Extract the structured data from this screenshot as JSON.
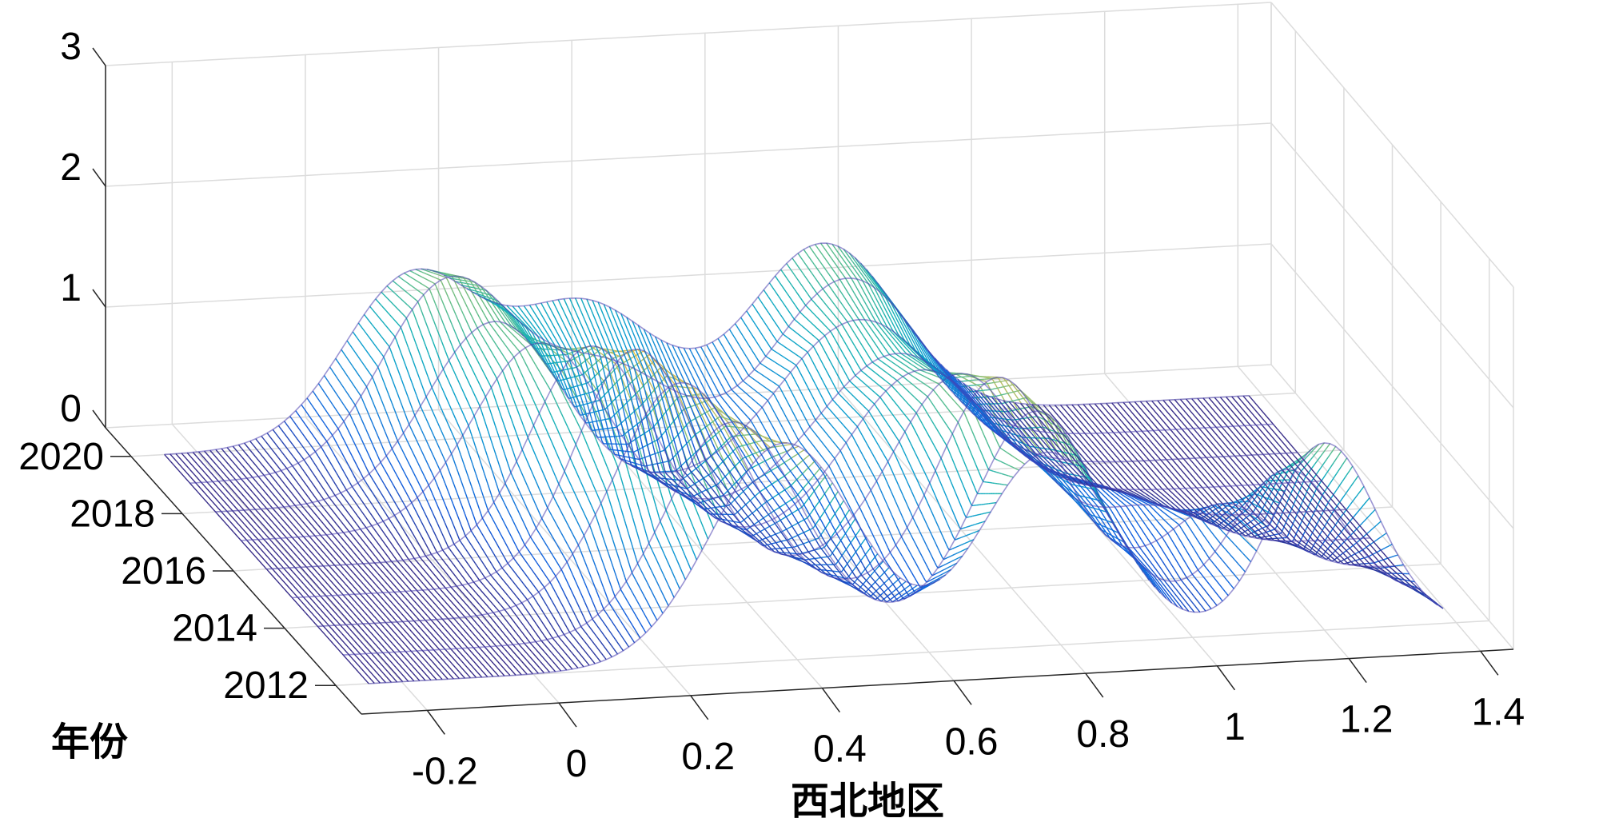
{
  "chart_data": {
    "type": "surface",
    "render_style": "waterfall-mesh",
    "colormap": "parula",
    "title": "",
    "xlabel": "西北地区",
    "ylabel": "年份",
    "zlabel": "",
    "xlim": [
      -0.3,
      1.45
    ],
    "ylim": [
      2011,
      2021
    ],
    "zlim": [
      0,
      3
    ],
    "x_ticks": [
      "-0.2",
      "0",
      "0.2",
      "0.4",
      "0.6",
      "0.8",
      "1",
      "1.2",
      "1.4"
    ],
    "y_ticks": [
      "2012",
      "2014",
      "2016",
      "2018",
      "2020"
    ],
    "z_ticks": [
      "0",
      "1",
      "2",
      "3"
    ],
    "grid": true,
    "years": [
      2012,
      2013,
      2014,
      2015,
      2016,
      2017,
      2018,
      2019,
      2020
    ],
    "density_components": [
      {
        "year": 2012,
        "peaks": [
          {
            "x": 0.38,
            "h": 1.8,
            "w": 0.11
          },
          {
            "x": 0.78,
            "h": 1.6,
            "w": 0.1
          },
          {
            "x": 1.2,
            "h": 1.55,
            "w": 0.08
          }
        ]
      },
      {
        "year": 2013,
        "peaks": [
          {
            "x": 0.34,
            "h": 1.75,
            "w": 0.1
          },
          {
            "x": 0.8,
            "h": 1.7,
            "w": 0.09
          },
          {
            "x": 1.18,
            "h": 1.1,
            "w": 0.08
          }
        ]
      },
      {
        "year": 2014,
        "peaks": [
          {
            "x": 0.3,
            "h": 1.85,
            "w": 0.1
          },
          {
            "x": 0.78,
            "h": 1.75,
            "w": 0.09
          },
          {
            "x": 1.12,
            "h": 0.6,
            "w": 0.08
          }
        ]
      },
      {
        "year": 2015,
        "peaks": [
          {
            "x": 0.27,
            "h": 1.9,
            "w": 0.09
          },
          {
            "x": 0.76,
            "h": 1.55,
            "w": 0.1
          },
          {
            "x": 1.05,
            "h": 0.35,
            "w": 0.08
          }
        ]
      },
      {
        "year": 2016,
        "peaks": [
          {
            "x": 0.24,
            "h": 1.7,
            "w": 0.09
          },
          {
            "x": 0.74,
            "h": 1.35,
            "w": 0.11
          },
          {
            "x": 1.0,
            "h": 0.25,
            "w": 0.08
          }
        ]
      },
      {
        "year": 2017,
        "peaks": [
          {
            "x": 0.2,
            "h": 1.5,
            "w": 0.1
          },
          {
            "x": 0.74,
            "h": 1.25,
            "w": 0.12
          }
        ]
      },
      {
        "year": 2018,
        "peaks": [
          {
            "x": 0.17,
            "h": 1.45,
            "w": 0.1
          },
          {
            "x": 0.72,
            "h": 1.3,
            "w": 0.12
          }
        ]
      },
      {
        "year": 2019,
        "peaks": [
          {
            "x": 0.14,
            "h": 1.55,
            "w": 0.1
          },
          {
            "x": 0.38,
            "h": 0.75,
            "w": 0.1
          },
          {
            "x": 0.74,
            "h": 1.4,
            "w": 0.11
          }
        ]
      },
      {
        "year": 2020,
        "peaks": [
          {
            "x": 0.12,
            "h": 1.35,
            "w": 0.1
          },
          {
            "x": 0.38,
            "h": 1.05,
            "w": 0.11
          },
          {
            "x": 0.74,
            "h": 1.45,
            "w": 0.11
          }
        ]
      }
    ]
  }
}
